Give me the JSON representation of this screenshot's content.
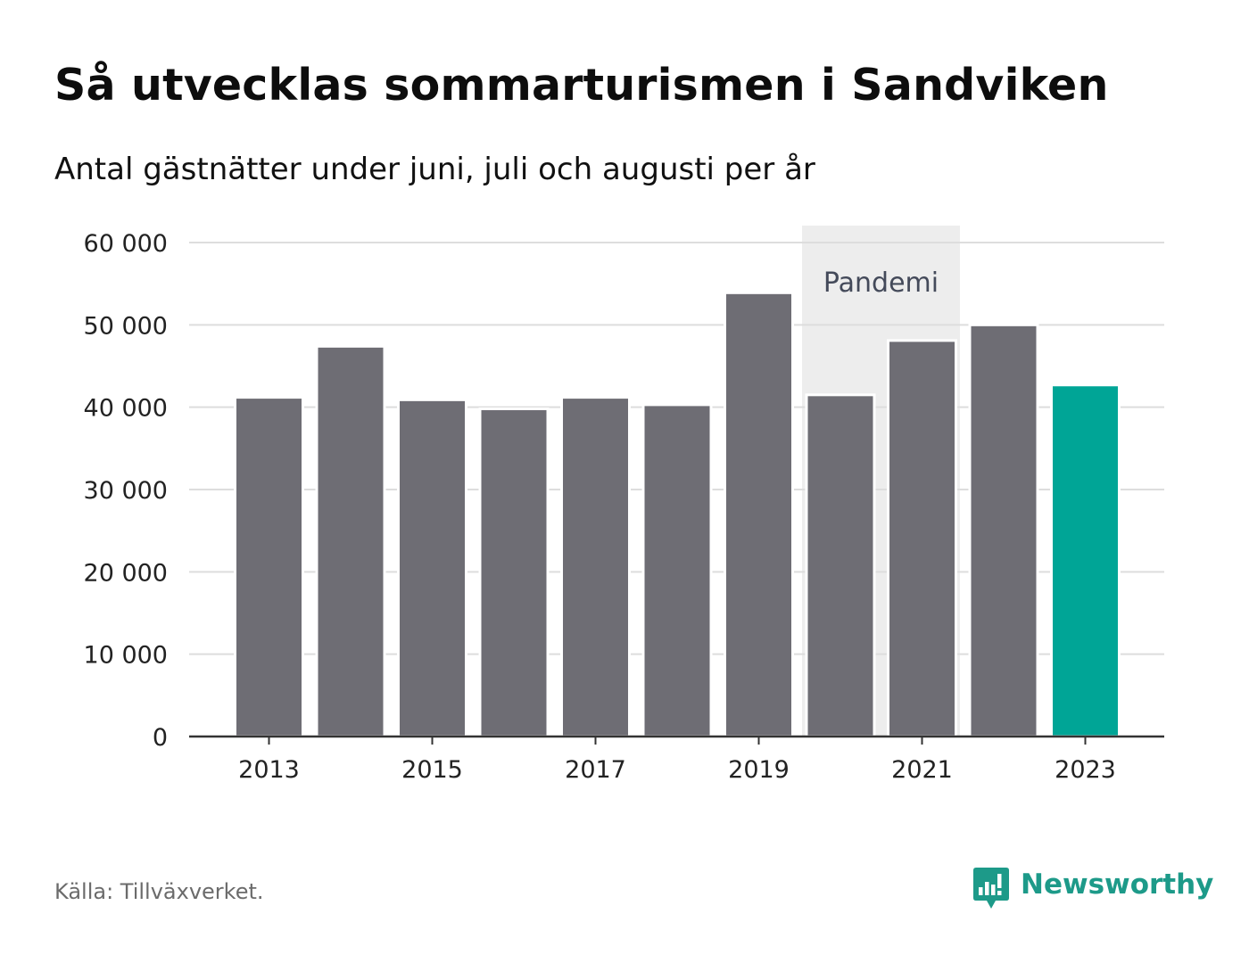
{
  "title": "Så utvecklas sommarturismen i Sandviken",
  "subtitle": "Antal gästnätter under juni, juli och augusti per år",
  "chart_data": {
    "type": "bar",
    "categories": [
      "2013",
      "2014",
      "2015",
      "2016",
      "2017",
      "2018",
      "2019",
      "2020",
      "2021",
      "2022",
      "2023"
    ],
    "values": [
      41200,
      47400,
      40900,
      39800,
      41200,
      40300,
      53900,
      41500,
      48100,
      50000,
      42700
    ],
    "ylim": [
      0,
      60000
    ],
    "yticks": [
      0,
      10000,
      20000,
      30000,
      40000,
      50000,
      60000
    ],
    "ytick_labels": [
      "0",
      "10 000",
      "20 000",
      "30 000",
      "40 000",
      "50 000",
      "60 000"
    ],
    "xtick_labels": [
      "2013",
      "2015",
      "2017",
      "2019",
      "2021",
      "2023"
    ],
    "grid": "horizontal",
    "highlight_category": "2023",
    "annotation": {
      "label": "Pandemi",
      "from": "2020",
      "to": "2021"
    },
    "colors": {
      "bar": "#6e6d74",
      "highlight": "#00a596",
      "shade": "#ededed",
      "grid": "#dddddd",
      "axis": "#333333",
      "annotation_text": "#444a5a"
    }
  },
  "footer": {
    "source": "Källa: Tillväxverket.",
    "brand": "Newsworthy",
    "brand_icon": "newsworthy-logo-icon",
    "brand_color": "#1d9a89"
  }
}
